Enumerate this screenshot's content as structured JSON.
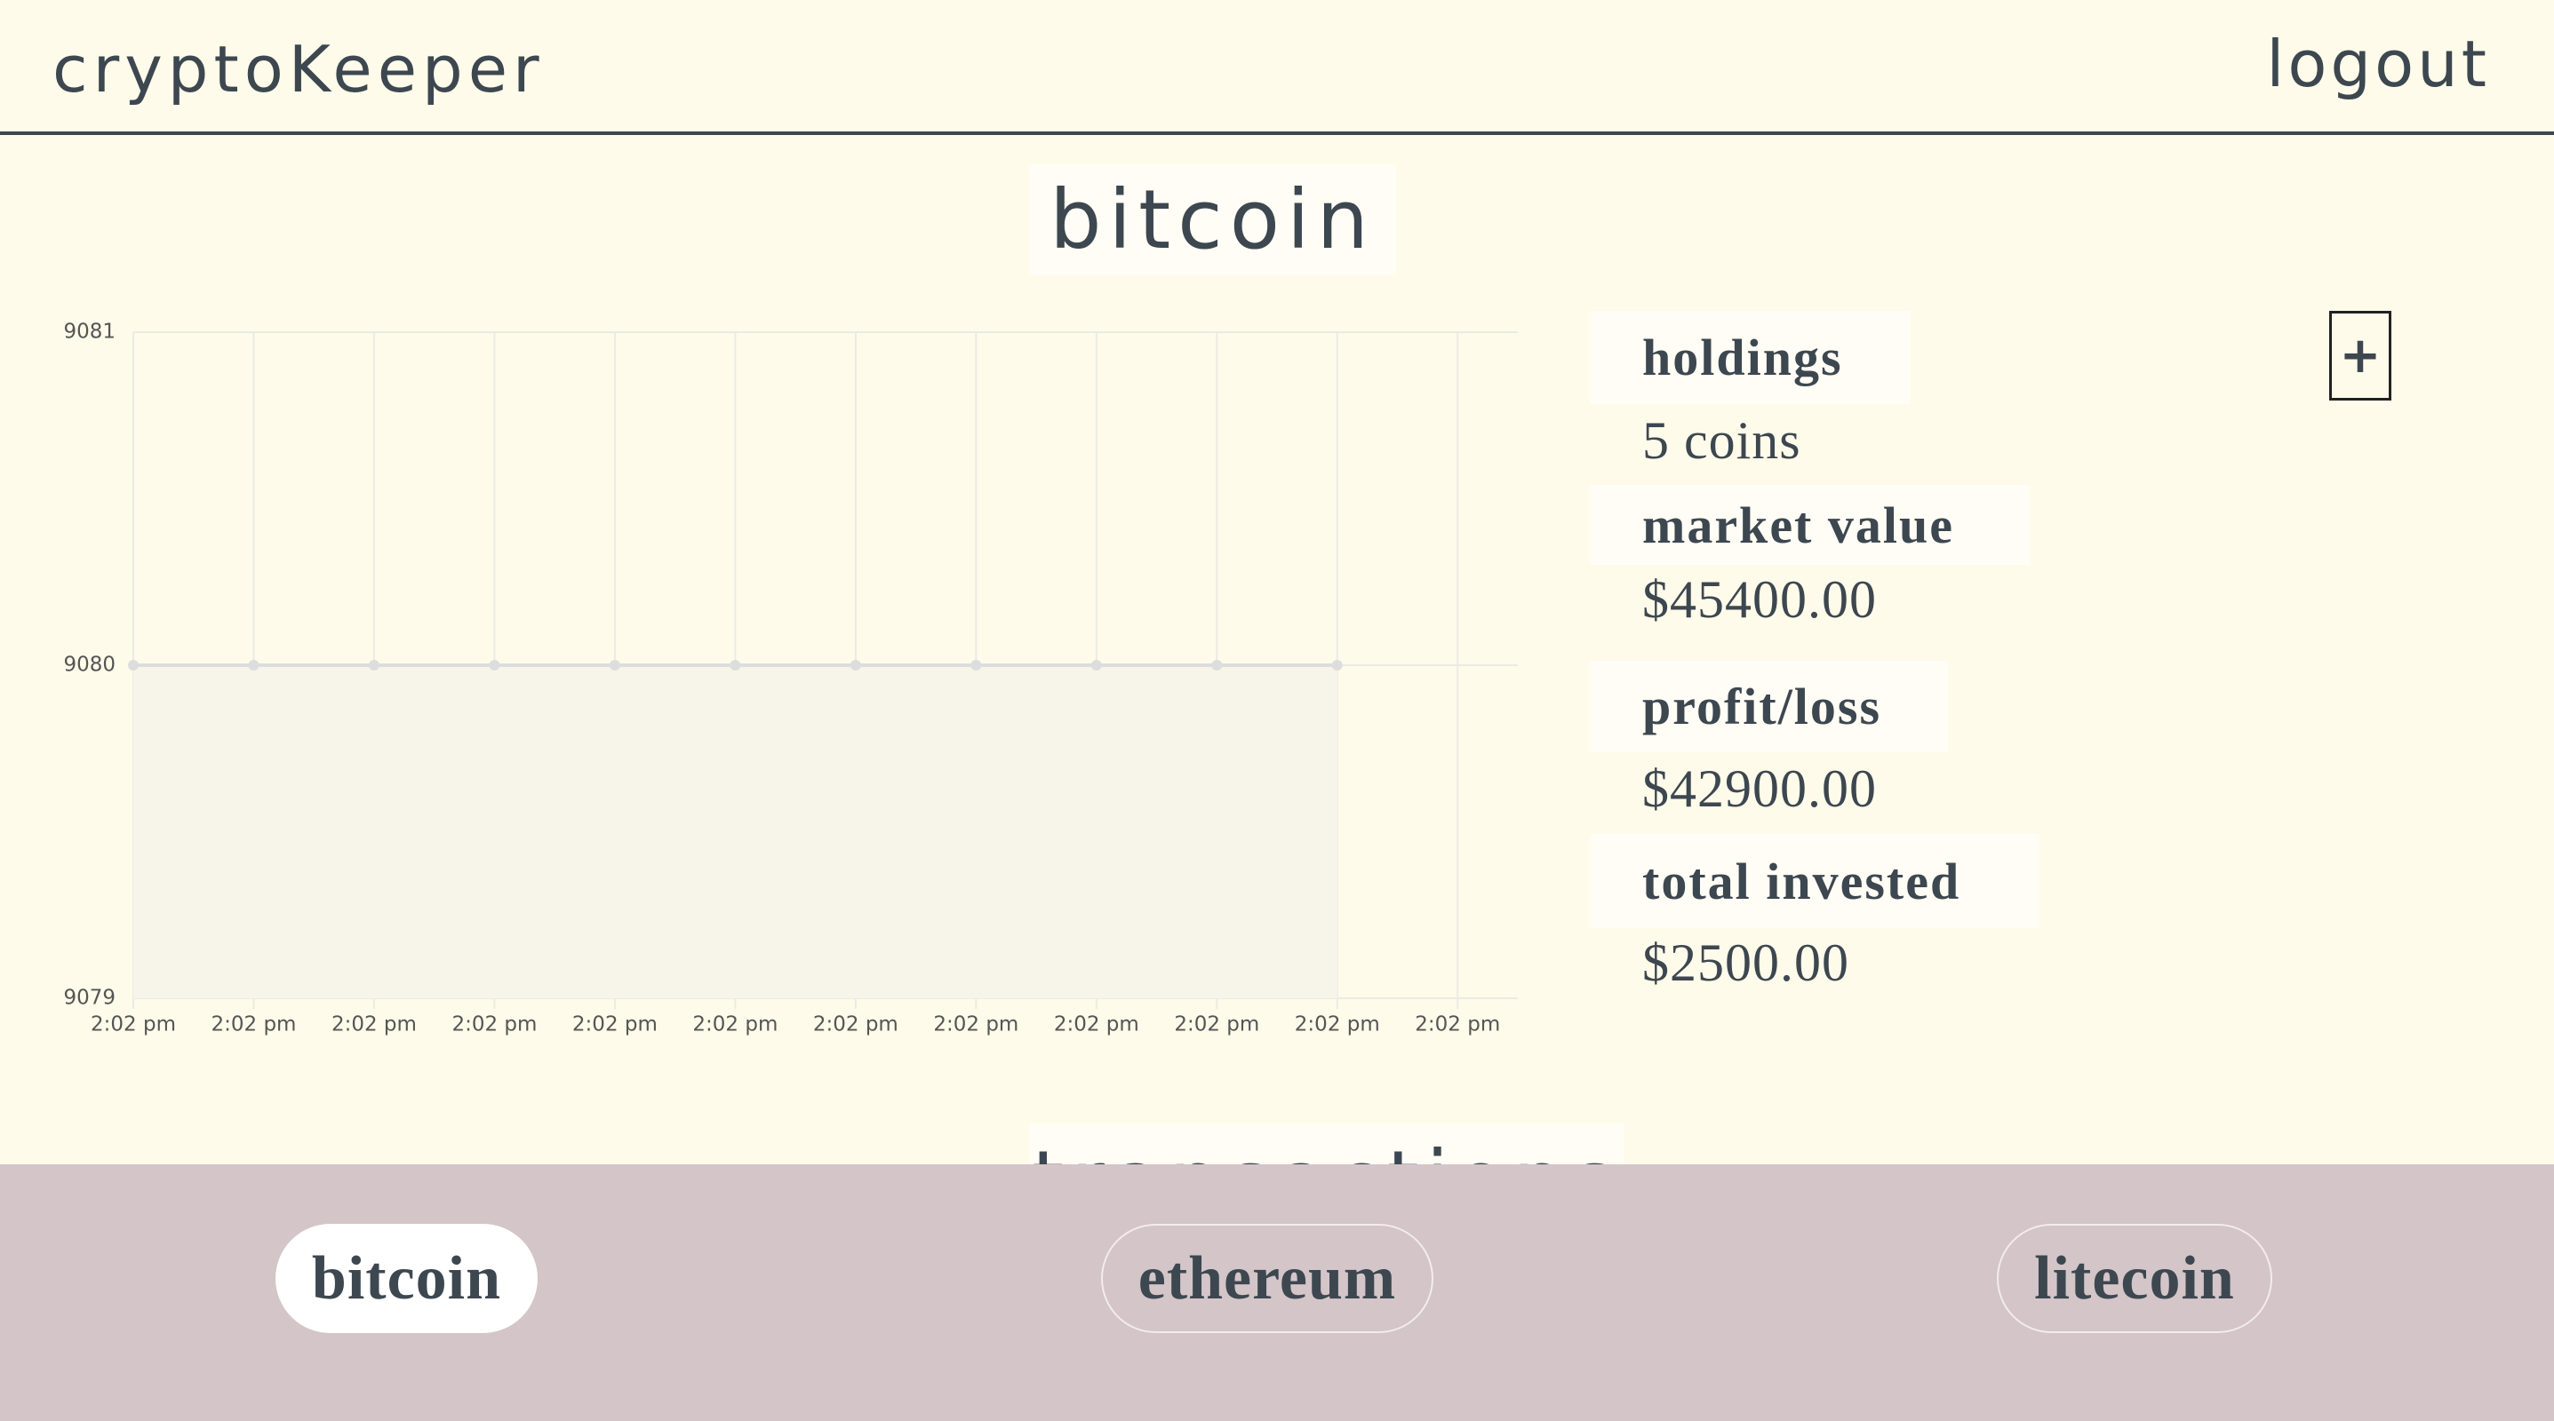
{
  "header": {
    "brand": "cryptoKeeper",
    "logout": "logout"
  },
  "coin_title": "bitcoin",
  "chart_data": {
    "type": "line",
    "categories": [
      "2:02 pm",
      "2:02 pm",
      "2:02 pm",
      "2:02 pm",
      "2:02 pm",
      "2:02 pm",
      "2:02 pm",
      "2:02 pm",
      "2:02 pm",
      "2:02 pm",
      "2:02 pm",
      "2:02 pm"
    ],
    "values": [
      9080,
      9080,
      9080,
      9080,
      9080,
      9080,
      9080,
      9080,
      9080,
      9080,
      9080,
      null
    ],
    "color": "#dddddd",
    "ylim": [
      9079,
      9081
    ],
    "yticks": [
      9079,
      9080,
      9081
    ],
    "grid": true
  },
  "stats": [
    {
      "label": "holdings",
      "value": "5 coins"
    },
    {
      "label": "market value",
      "value": "$45400.00"
    },
    {
      "label": "profit/loss",
      "value": "$42900.00"
    },
    {
      "label": "total invested",
      "value": "$2500.00"
    }
  ],
  "add_button": "+",
  "transactions_title": "transactions",
  "nav": [
    "bitcoin",
    "ethereum",
    "litecoin"
  ]
}
